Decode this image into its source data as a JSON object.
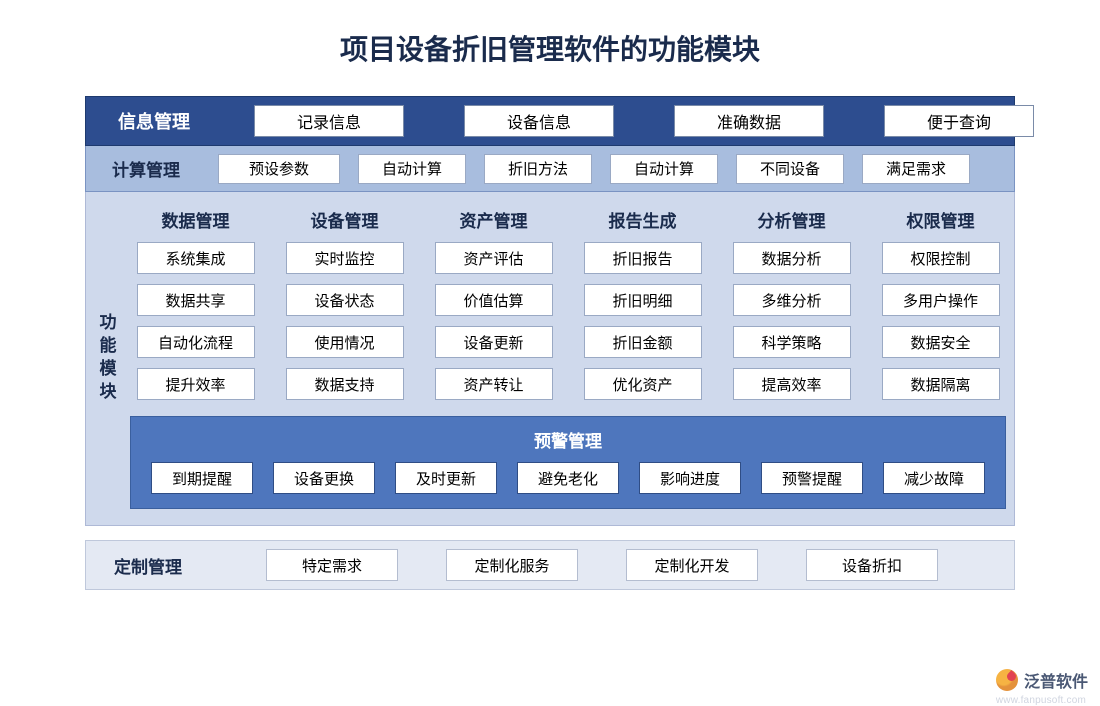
{
  "title": "项目设备折旧管理软件的功能模块",
  "colors": {
    "title_text": "#1a2b4c",
    "row1_bg": "#2d4d8f",
    "row2_bg": "#a8bdde",
    "middle_bg": "#cfd9ec",
    "alert_bg": "#4e76bd",
    "row4_bg": "#e4e9f3",
    "cell_bg": "#ffffff",
    "cell_border": "#9aa9c4"
  },
  "row1": {
    "label": "信息管理",
    "items": [
      "记录信息",
      "设备信息",
      "准确数据",
      "便于查询"
    ]
  },
  "row2": {
    "label": "计算管理",
    "items": [
      "预设参数",
      "自动计算",
      "折旧方法",
      "自动计算",
      "不同设备",
      "满足需求"
    ]
  },
  "middle": {
    "side_label": "功能模块",
    "columns": [
      {
        "header": "数据管理",
        "cells": [
          "系统集成",
          "数据共享",
          "自动化流程",
          "提升效率"
        ]
      },
      {
        "header": "设备管理",
        "cells": [
          "实时监控",
          "设备状态",
          "使用情况",
          "数据支持"
        ]
      },
      {
        "header": "资产管理",
        "cells": [
          "资产评估",
          "价值估算",
          "设备更新",
          "资产转让"
        ]
      },
      {
        "header": "报告生成",
        "cells": [
          "折旧报告",
          "折旧明细",
          "折旧金额",
          "优化资产"
        ]
      },
      {
        "header": "分析管理",
        "cells": [
          "数据分析",
          "多维分析",
          "科学策略",
          "提高效率"
        ]
      },
      {
        "header": "权限管理",
        "cells": [
          "权限控制",
          "多用户操作",
          "数据安全",
          "数据隔离"
        ]
      }
    ],
    "alert": {
      "title": "预警管理",
      "items": [
        "到期提醒",
        "设备更换",
        "及时更新",
        "避免老化",
        "影响进度",
        "预警提醒",
        "减少故障"
      ]
    }
  },
  "row4": {
    "label": "定制管理",
    "items": [
      "特定需求",
      "定制化服务",
      "定制化开发",
      "设备折扣"
    ]
  },
  "watermark": {
    "text": "泛普软件",
    "url": "www.fanpusoft.com"
  }
}
